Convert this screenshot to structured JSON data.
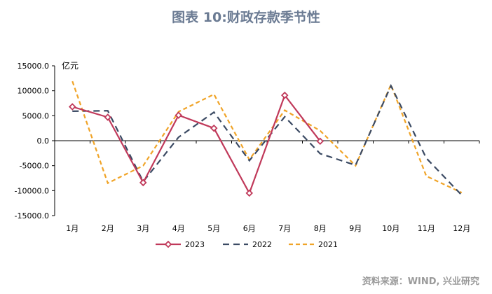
{
  "title": "图表 10:财政存款季节性",
  "source": "资料来源：WIND, 兴业研究",
  "chart_data": {
    "type": "line",
    "unit_label": "亿元",
    "categories": [
      "1月",
      "2月",
      "3月",
      "4月",
      "5月",
      "6月",
      "7月",
      "8月",
      "9月",
      "10月",
      "11月",
      "12月"
    ],
    "ylim": [
      -15000,
      15000
    ],
    "yticks": [
      15000,
      10000,
      5000,
      0,
      -5000,
      -10000,
      -15000
    ],
    "ytick_labels": [
      "15000.0",
      "10000.0",
      "5000.0",
      "0.0",
      "-5000.0",
      "-10000.0",
      "-15000.0"
    ],
    "grid": false,
    "legend_position": "bottom",
    "series": [
      {
        "name": "2023",
        "color": "#c0395a",
        "style": "solid-diamond",
        "values": [
          6800,
          4700,
          -8400,
          5100,
          2500,
          -10500,
          9100,
          -100,
          null,
          null,
          null,
          null
        ]
      },
      {
        "name": "2022",
        "color": "#3b4a63",
        "style": "dashed",
        "values": [
          5900,
          6000,
          -8200,
          700,
          5700,
          -4000,
          4800,
          -2600,
          -4900,
          11000,
          -3500,
          -10900
        ]
      },
      {
        "name": "2021",
        "color": "#f0a428",
        "style": "dashed",
        "values": [
          11900,
          -8500,
          -5000,
          5800,
          9300,
          -3800,
          6100,
          2000,
          -5000,
          11200,
          -7100,
          -10400
        ]
      }
    ]
  }
}
